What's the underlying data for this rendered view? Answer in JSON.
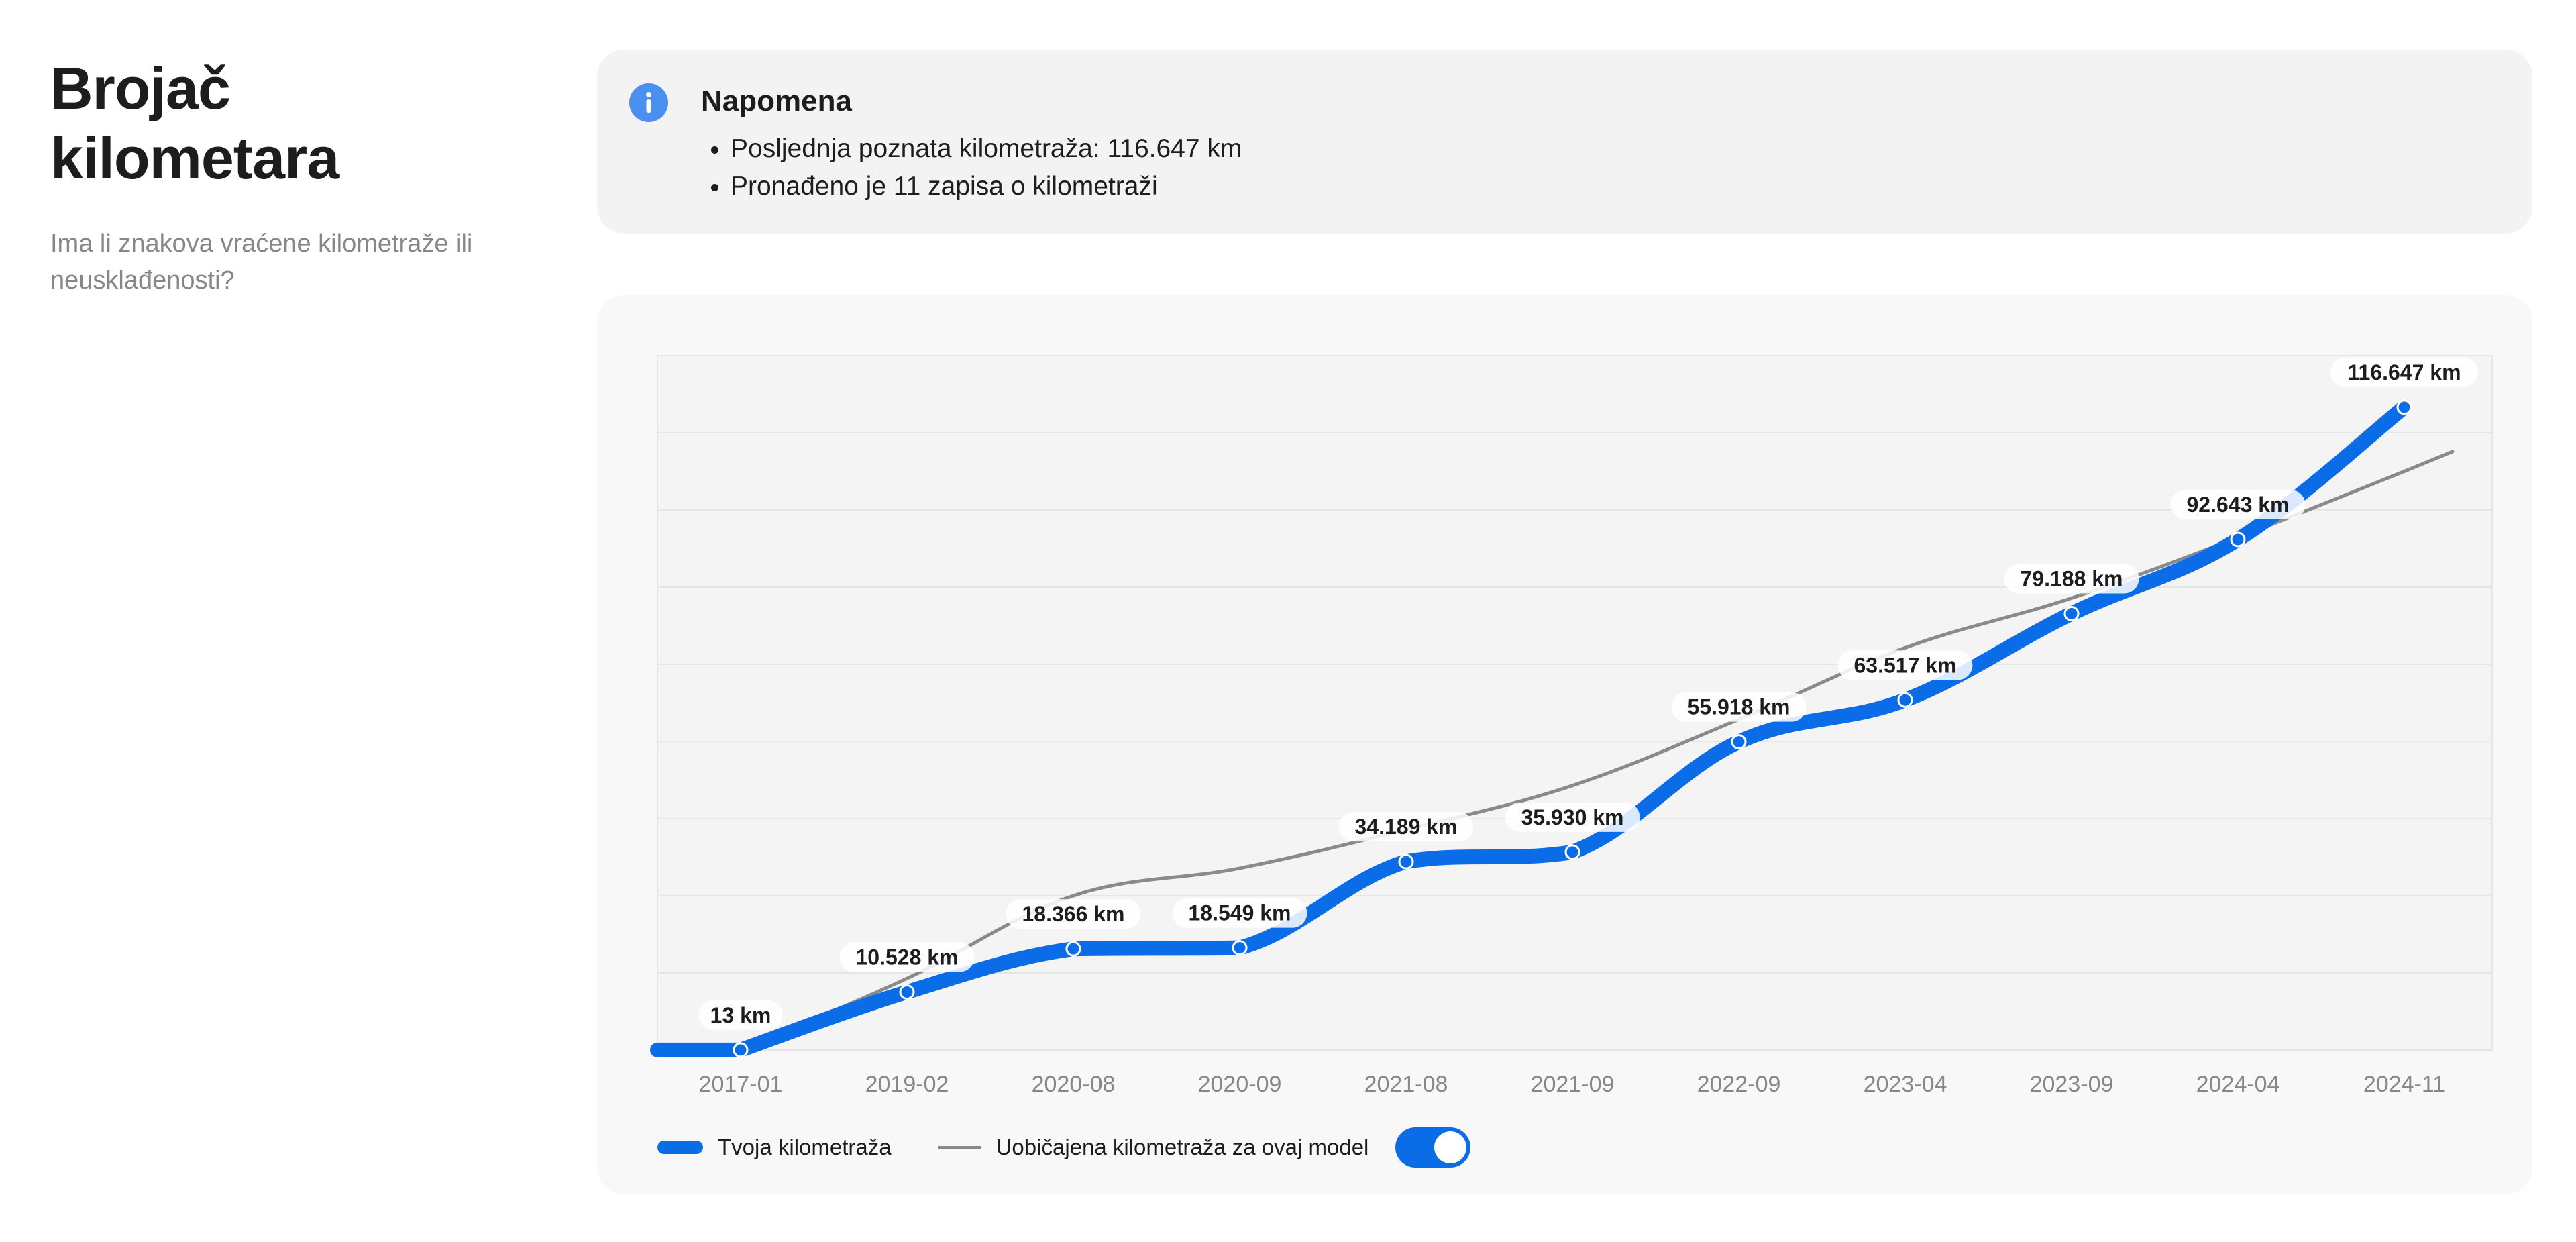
{
  "header": {
    "title": "Brojač kilometara",
    "subtitle": "Ima li znakova vraćene kilometraže ili neusklađenosti?"
  },
  "note": {
    "title": "Napomena",
    "icon": "info-icon",
    "items": [
      "Posljednja poznata kilometraža: 116.647 km",
      "Pronađeno je 11 zapisa o kilometraži"
    ]
  },
  "legend": {
    "series_label": "Tvoja kilometraža",
    "reference_label": "Uobičajena kilometraža za ovaj model",
    "toggle_on": true
  },
  "colors": {
    "accent": "#0a6ce6",
    "reference_line": "#8a8a8a"
  },
  "chart_data": {
    "type": "line",
    "categories": [
      "2017-01",
      "2019-02",
      "2020-08",
      "2020-09",
      "2021-08",
      "2021-09",
      "2022-09",
      "2023-04",
      "2023-09",
      "2024-04",
      "2024-11"
    ],
    "series": [
      {
        "name": "Tvoja kilometraža",
        "values": [
          13,
          10528,
          18366,
          18549,
          34189,
          35930,
          55918,
          63517,
          79188,
          92643,
          116647
        ],
        "labels": [
          "13 km",
          "10.528 km",
          "18.366 km",
          "18.549 km",
          "34.189 km",
          "35.930 km",
          "55.918 km",
          "63.517 km",
          "79.188 km",
          "92.643 km",
          "116.647 km"
        ]
      },
      {
        "name": "Uobičajena kilometraža za ovaj model",
        "values": [
          0,
          13000,
          28000,
          33000,
          40000,
          48000,
          60000,
          73000,
          82000,
          93000,
          105000
        ]
      }
    ],
    "ylim": [
      0,
      126000
    ],
    "grid": true
  }
}
